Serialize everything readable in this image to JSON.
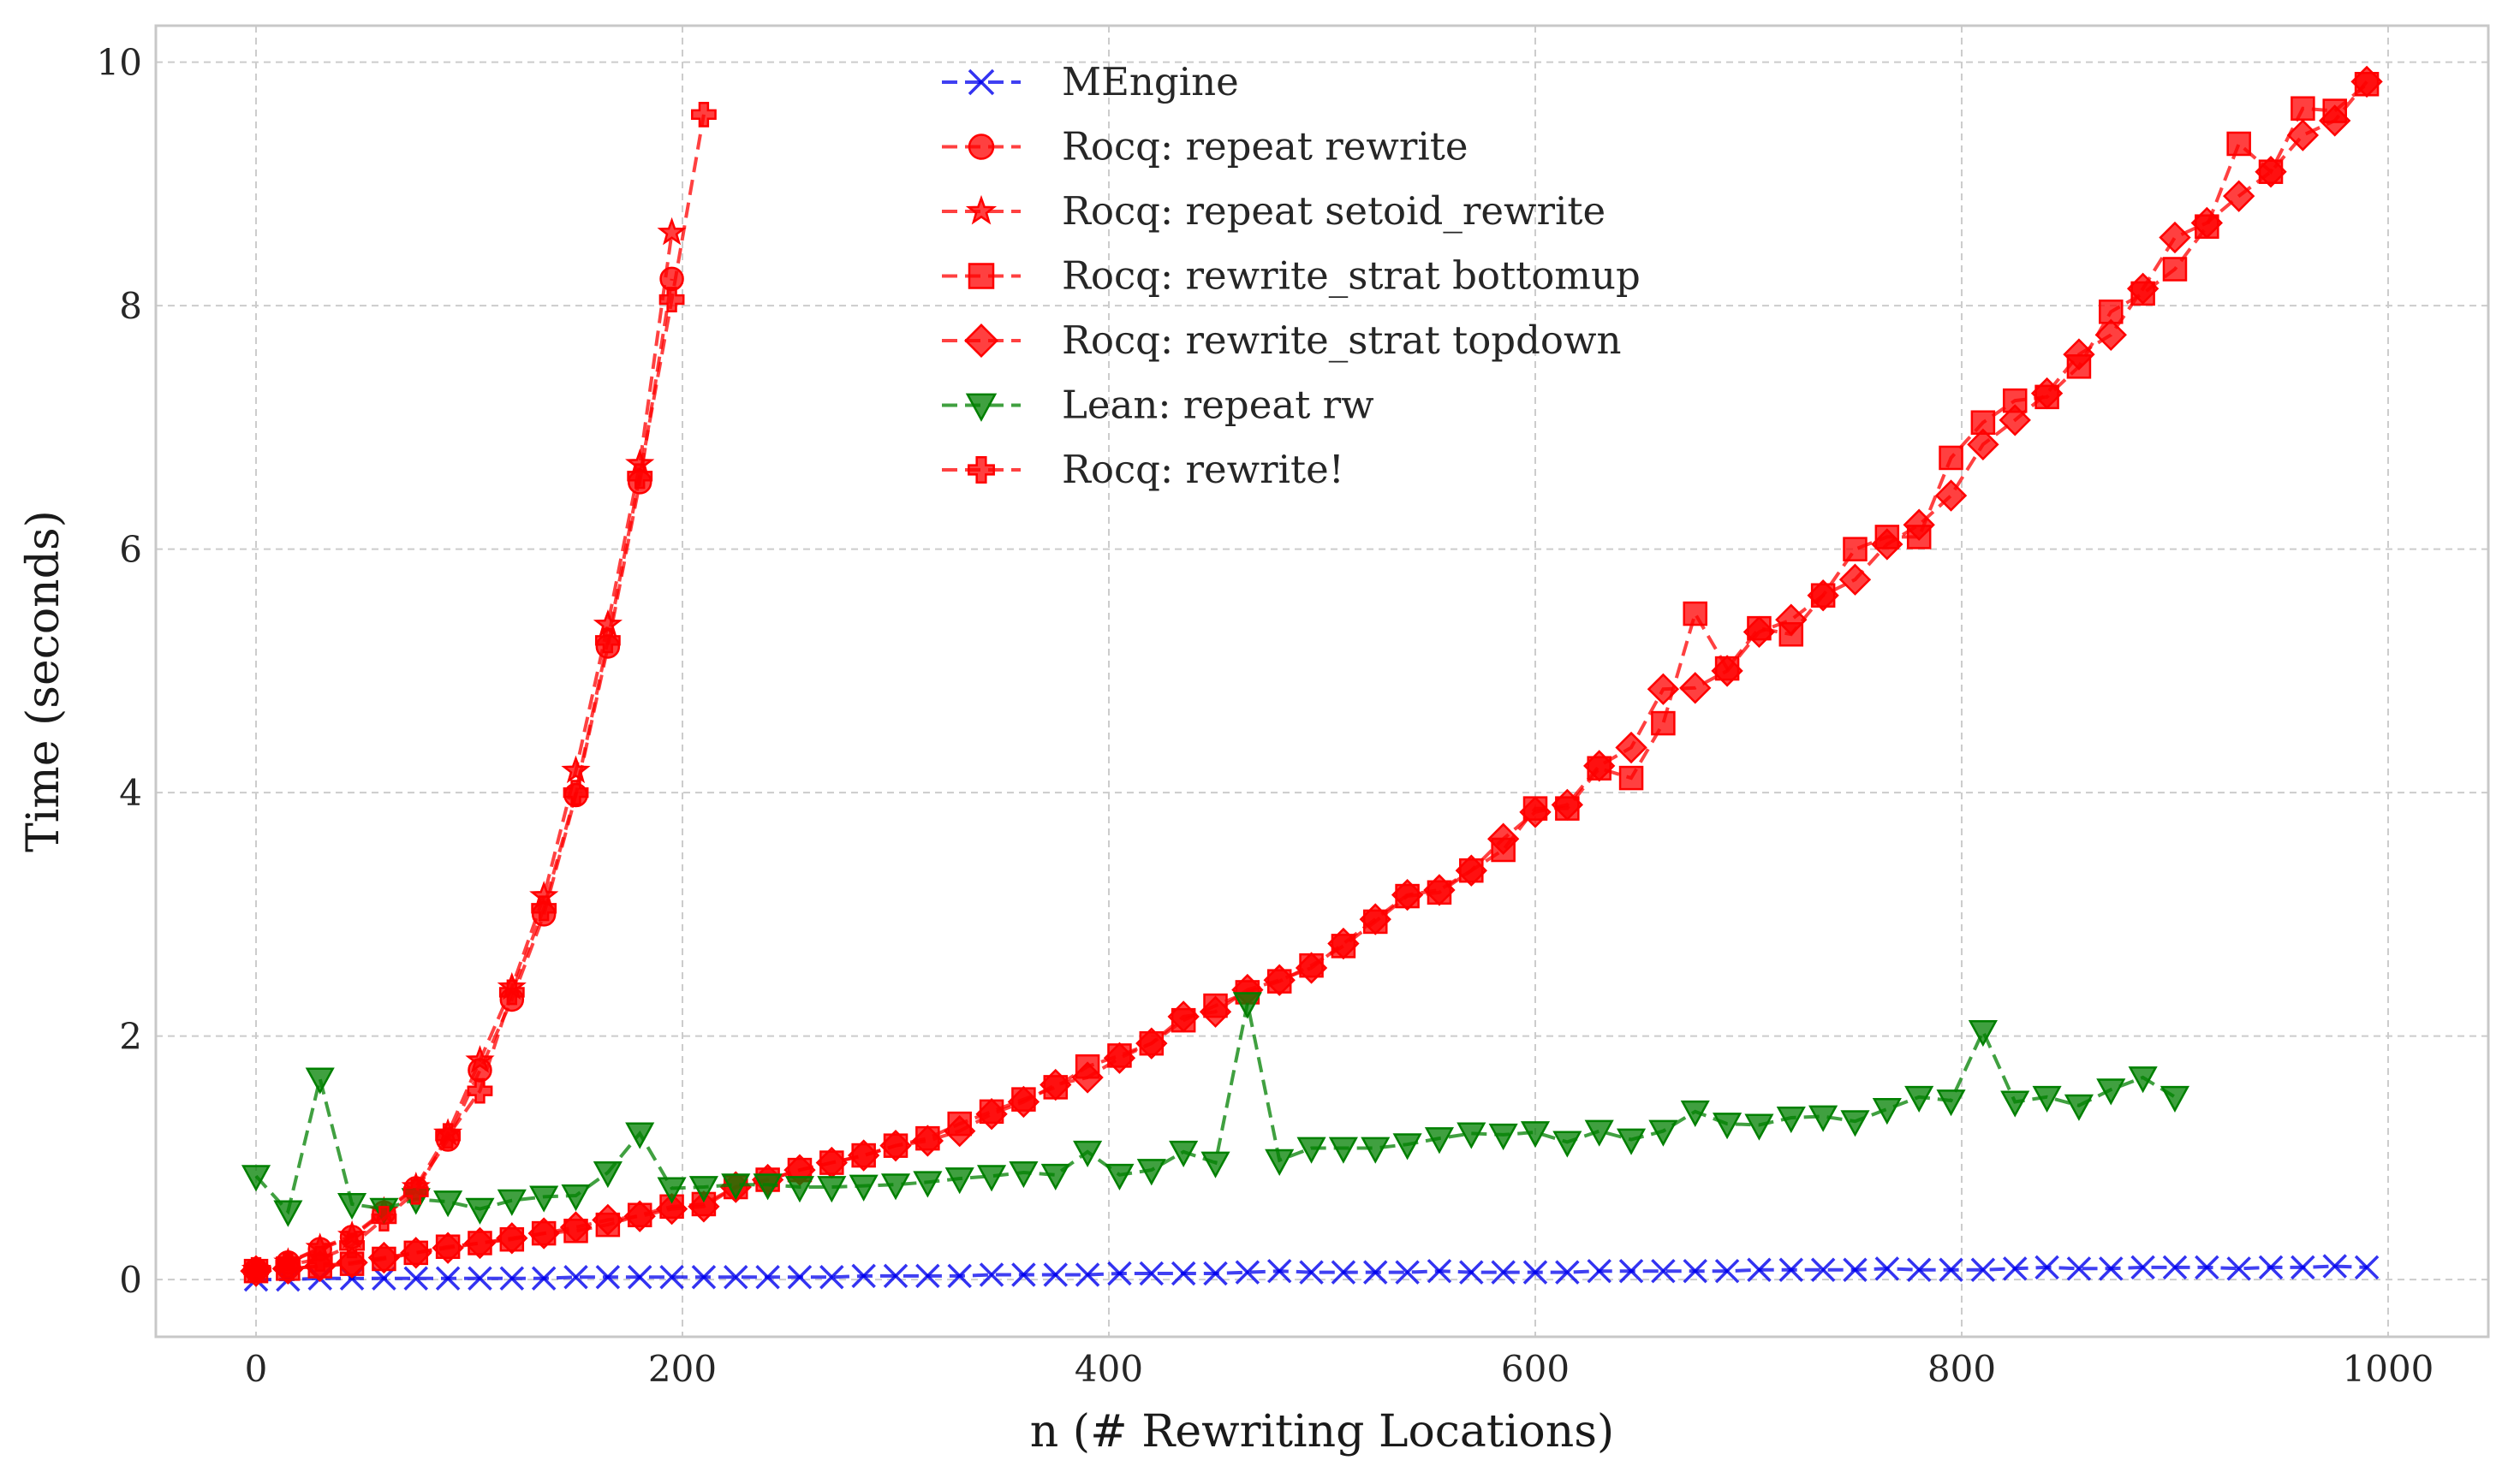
{
  "chart_data": {
    "type": "line",
    "xlabel": "n (# Rewriting Locations)",
    "ylabel": "Time (seconds)",
    "xlim": [
      -47,
      1047
    ],
    "ylim": [
      -0.47,
      10.3
    ],
    "x_ticks": [
      0,
      200,
      400,
      600,
      800,
      1000
    ],
    "y_ticks": [
      0,
      2,
      4,
      6,
      8,
      10
    ],
    "grid": true,
    "legend_position": "top-center",
    "series": [
      {
        "name": "MEngine",
        "color": "#0000ee",
        "marker": "x",
        "x": [
          0,
          15,
          30,
          45,
          60,
          75,
          90,
          105,
          120,
          135,
          150,
          165,
          180,
          195,
          210,
          225,
          240,
          255,
          270,
          285,
          300,
          315,
          330,
          345,
          360,
          375,
          390,
          405,
          420,
          435,
          450,
          465,
          480,
          495,
          510,
          525,
          540,
          555,
          570,
          585,
          600,
          615,
          630,
          645,
          660,
          675,
          690,
          705,
          720,
          735,
          750,
          765,
          780,
          795,
          810,
          825,
          840,
          855,
          870,
          885,
          900,
          915,
          930,
          945,
          960,
          975,
          990
        ],
        "y": [
          0.0,
          0.0,
          0.01,
          0.01,
          0.01,
          0.01,
          0.01,
          0.01,
          0.01,
          0.01,
          0.02,
          0.02,
          0.02,
          0.02,
          0.02,
          0.02,
          0.02,
          0.02,
          0.02,
          0.03,
          0.03,
          0.03,
          0.03,
          0.04,
          0.04,
          0.04,
          0.04,
          0.05,
          0.05,
          0.05,
          0.05,
          0.06,
          0.07,
          0.06,
          0.06,
          0.06,
          0.06,
          0.07,
          0.06,
          0.06,
          0.06,
          0.06,
          0.07,
          0.07,
          0.07,
          0.07,
          0.07,
          0.08,
          0.08,
          0.08,
          0.08,
          0.09,
          0.08,
          0.08,
          0.08,
          0.09,
          0.1,
          0.09,
          0.09,
          0.1,
          0.1,
          0.1,
          0.09,
          0.1,
          0.1,
          0.11,
          0.1
        ]
      },
      {
        "name": "Rocq: repeat rewrite",
        "color": "#ff0000",
        "marker": "circle",
        "x": [
          0,
          15,
          30,
          45,
          60,
          75,
          90,
          105,
          120,
          135,
          150,
          165,
          180,
          195
        ],
        "y": [
          0.08,
          0.14,
          0.25,
          0.35,
          0.55,
          0.75,
          1.15,
          1.72,
          2.3,
          3.0,
          3.98,
          5.2,
          6.55,
          8.22
        ]
      },
      {
        "name": "Rocq: repeat setoid_rewrite",
        "color": "#ff0000",
        "marker": "star",
        "x": [
          0,
          15,
          30,
          45,
          60,
          75,
          90,
          105,
          120,
          135,
          150,
          165,
          180,
          195
        ],
        "y": [
          0.08,
          0.14,
          0.26,
          0.36,
          0.56,
          0.76,
          1.2,
          1.8,
          2.4,
          3.15,
          4.18,
          5.38,
          6.7,
          8.6
        ]
      },
      {
        "name": "Rocq: rewrite_strat bottomup",
        "color": "#ff0000",
        "marker": "square",
        "x": [
          0,
          15,
          30,
          45,
          60,
          75,
          90,
          105,
          120,
          135,
          150,
          165,
          180,
          195,
          210,
          225,
          240,
          255,
          270,
          285,
          300,
          315,
          330,
          345,
          360,
          375,
          390,
          405,
          420,
          435,
          450,
          465,
          480,
          495,
          510,
          525,
          540,
          555,
          570,
          585,
          600,
          615,
          630,
          645,
          660,
          675,
          690,
          705,
          720,
          735,
          750,
          765,
          780,
          795,
          810,
          825,
          840,
          855,
          870,
          885,
          900,
          915,
          930,
          945,
          960,
          975,
          990
        ],
        "y": [
          0.07,
          0.09,
          0.11,
          0.13,
          0.17,
          0.22,
          0.27,
          0.3,
          0.33,
          0.38,
          0.4,
          0.45,
          0.53,
          0.6,
          0.62,
          0.76,
          0.82,
          0.9,
          0.96,
          1.02,
          1.1,
          1.16,
          1.28,
          1.38,
          1.48,
          1.58,
          1.75,
          1.84,
          1.94,
          2.13,
          2.25,
          2.36,
          2.45,
          2.58,
          2.74,
          2.94,
          3.15,
          3.18,
          3.36,
          3.53,
          3.87,
          3.87,
          4.2,
          4.12,
          4.57,
          5.47,
          5.02,
          5.35,
          5.3,
          5.62,
          6.0,
          6.1,
          6.1,
          6.75,
          7.04,
          7.22,
          7.25,
          7.5,
          7.95,
          8.1,
          8.3,
          8.65,
          9.33,
          9.1,
          9.62,
          9.6,
          9.82
        ]
      },
      {
        "name": "Rocq: rewrite_strat topdown",
        "color": "#ff0000",
        "marker": "diamond",
        "x": [
          0,
          15,
          30,
          45,
          60,
          75,
          90,
          105,
          120,
          135,
          150,
          165,
          180,
          195,
          210,
          225,
          240,
          255,
          270,
          285,
          300,
          315,
          330,
          345,
          360,
          375,
          390,
          405,
          420,
          435,
          450,
          465,
          480,
          495,
          510,
          525,
          540,
          555,
          570,
          585,
          600,
          615,
          630,
          645,
          660,
          675,
          690,
          705,
          720,
          735,
          750,
          765,
          780,
          795,
          810,
          825,
          840,
          855,
          870,
          885,
          900,
          915,
          930,
          945,
          960,
          975,
          990
        ],
        "y": [
          0.07,
          0.09,
          0.11,
          0.14,
          0.18,
          0.22,
          0.26,
          0.3,
          0.34,
          0.38,
          0.43,
          0.49,
          0.52,
          0.58,
          0.6,
          0.76,
          0.82,
          0.9,
          0.96,
          1.02,
          1.1,
          1.14,
          1.22,
          1.36,
          1.46,
          1.6,
          1.66,
          1.82,
          1.94,
          2.16,
          2.2,
          2.38,
          2.46,
          2.56,
          2.76,
          2.96,
          3.16,
          3.2,
          3.36,
          3.62,
          3.84,
          3.9,
          4.22,
          4.37,
          4.85,
          4.86,
          5.0,
          5.32,
          5.42,
          5.62,
          5.75,
          6.04,
          6.2,
          6.44,
          6.86,
          7.06,
          7.28,
          7.6,
          7.76,
          8.14,
          8.56,
          8.68,
          8.9,
          9.1,
          9.4,
          9.52,
          9.84
        ]
      },
      {
        "name": "Lean: repeat rw",
        "color": "#008000",
        "marker": "triangle-down",
        "x": [
          0,
          15,
          30,
          45,
          60,
          75,
          90,
          105,
          120,
          135,
          150,
          165,
          180,
          195,
          210,
          225,
          240,
          255,
          270,
          285,
          300,
          315,
          330,
          345,
          360,
          375,
          390,
          405,
          420,
          435,
          450,
          465,
          480,
          495,
          510,
          525,
          540,
          555,
          570,
          585,
          600,
          615,
          630,
          645,
          660,
          675,
          690,
          705,
          720,
          735,
          750,
          765,
          780,
          795,
          810,
          825,
          840,
          855,
          870,
          885,
          900
        ],
        "y": [
          0.85,
          0.56,
          1.65,
          0.62,
          0.58,
          0.66,
          0.64,
          0.58,
          0.65,
          0.68,
          0.69,
          0.88,
          1.2,
          0.75,
          0.76,
          0.78,
          0.78,
          0.76,
          0.76,
          0.77,
          0.78,
          0.8,
          0.83,
          0.85,
          0.88,
          0.86,
          1.05,
          0.86,
          0.9,
          1.05,
          0.96,
          2.27,
          0.98,
          1.08,
          1.08,
          1.08,
          1.11,
          1.16,
          1.2,
          1.19,
          1.21,
          1.13,
          1.22,
          1.15,
          1.22,
          1.38,
          1.28,
          1.27,
          1.33,
          1.34,
          1.3,
          1.4,
          1.5,
          1.47,
          2.04,
          1.46,
          1.5,
          1.43,
          1.56,
          1.66,
          1.5
        ]
      },
      {
        "name": "Rocq: rewrite!",
        "color": "#ff0000",
        "marker": "plus",
        "x": [
          0,
          15,
          30,
          45,
          60,
          75,
          90,
          105,
          120,
          135,
          150,
          165,
          180,
          195,
          210
        ],
        "y": [
          0.08,
          0.12,
          0.17,
          0.28,
          0.5,
          0.72,
          1.18,
          1.55,
          2.36,
          3.05,
          4.0,
          5.25,
          6.6,
          8.05,
          9.57
        ]
      }
    ]
  }
}
